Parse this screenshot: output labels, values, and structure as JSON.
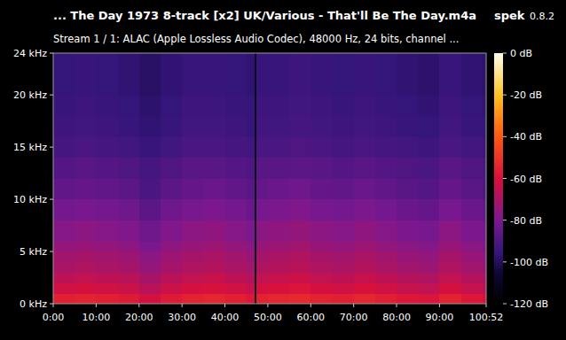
{
  "chart_data": {
    "type": "heatmap",
    "title": "... The Day 1973 8-track [x2] UK/Various - That'll Be The Day.m4a",
    "app": "spek",
    "version": "0.8.2",
    "subtitle": "Stream 1 / 1: ALAC (Apple Lossless Audio Codec), 48000 Hz, 24 bits, channel ...",
    "xlim": [
      0,
      6052
    ],
    "xticks": [
      {
        "value": 0,
        "label": "0:00"
      },
      {
        "value": 600,
        "label": "10:00"
      },
      {
        "value": 1200,
        "label": "20:00"
      },
      {
        "value": 1800,
        "label": "30:00"
      },
      {
        "value": 2400,
        "label": "40:00"
      },
      {
        "value": 3000,
        "label": "50:00"
      },
      {
        "value": 3600,
        "label": "60:00"
      },
      {
        "value": 4200,
        "label": "70:00"
      },
      {
        "value": 4800,
        "label": "80:00"
      },
      {
        "value": 5400,
        "label": "90:00"
      },
      {
        "value": 6052,
        "label": "100:52"
      }
    ],
    "ylim": [
      0,
      24
    ],
    "yticks": [
      {
        "value": 0,
        "label": "0 kHz"
      },
      {
        "value": 5,
        "label": "5 kHz"
      },
      {
        "value": 10,
        "label": "10 kHz"
      },
      {
        "value": 15,
        "label": "15 kHz"
      },
      {
        "value": 20,
        "label": "20 kHz"
      },
      {
        "value": 24,
        "label": "24 kHz"
      }
    ],
    "x_bins": [
      0,
      300,
      600,
      900,
      1200,
      1500,
      1800,
      2100,
      2400,
      2700,
      2820,
      2840,
      3000,
      3300,
      3600,
      3900,
      4200,
      4500,
      4800,
      5100,
      5400,
      5700,
      6000,
      6052
    ],
    "y_bins": [
      0,
      1,
      2,
      3,
      4,
      5,
      6,
      8,
      10,
      12,
      14,
      16,
      18,
      20,
      24
    ],
    "cells": [
      [
        -56,
        -55,
        -56,
        -57,
        -61,
        -57,
        -55,
        -54,
        -56,
        -58,
        -112,
        -55,
        -54,
        -53,
        -55,
        -56,
        -54,
        -56,
        -58,
        -59,
        -55,
        -58,
        -60
      ],
      [
        -62,
        -61,
        -62,
        -63,
        -67,
        -63,
        -61,
        -60,
        -62,
        -64,
        -112,
        -61,
        -60,
        -59,
        -61,
        -62,
        -60,
        -62,
        -64,
        -65,
        -61,
        -64,
        -66
      ],
      [
        -66,
        -65,
        -66,
        -67,
        -71,
        -67,
        -65,
        -64,
        -66,
        -68,
        -112,
        -65,
        -64,
        -63,
        -65,
        -66,
        -64,
        -66,
        -68,
        -69,
        -65,
        -68,
        -70
      ],
      [
        -70,
        -69,
        -70,
        -71,
        -75,
        -71,
        -69,
        -68,
        -70,
        -72,
        -112,
        -69,
        -68,
        -67,
        -69,
        -70,
        -68,
        -70,
        -72,
        -73,
        -69,
        -72,
        -74
      ],
      [
        -72,
        -71,
        -72,
        -73,
        -77,
        -73,
        -71,
        -70,
        -72,
        -74,
        -112,
        -71,
        -70,
        -69,
        -71,
        -72,
        -70,
        -72,
        -74,
        -75,
        -71,
        -74,
        -76
      ],
      [
        -75,
        -74,
        -75,
        -76,
        -80,
        -76,
        -74,
        -73,
        -75,
        -77,
        -112,
        -74,
        -73,
        -72,
        -74,
        -75,
        -73,
        -75,
        -77,
        -78,
        -74,
        -77,
        -79
      ],
      [
        -78,
        -77,
        -78,
        -79,
        -83,
        -79,
        -77,
        -76,
        -78,
        -80,
        -112,
        -77,
        -76,
        -75,
        -77,
        -78,
        -76,
        -78,
        -80,
        -81,
        -77,
        -80,
        -82
      ],
      [
        -82,
        -81,
        -82,
        -83,
        -87,
        -83,
        -81,
        -80,
        -82,
        -84,
        -112,
        -81,
        -80,
        -79,
        -81,
        -82,
        -80,
        -82,
        -84,
        -85,
        -81,
        -84,
        -86
      ],
      [
        -86,
        -85,
        -86,
        -87,
        -91,
        -87,
        -85,
        -84,
        -86,
        -88,
        -112,
        -85,
        -84,
        -83,
        -85,
        -86,
        -84,
        -86,
        -88,
        -89,
        -85,
        -88,
        -90
      ],
      [
        -89,
        -88,
        -89,
        -90,
        -92,
        -90,
        -88,
        -88,
        -89,
        -90,
        -112,
        -88,
        -88,
        -87,
        -88,
        -89,
        -88,
        -89,
        -90,
        -91,
        -88,
        -90,
        -91
      ],
      [
        -92,
        -91,
        -92,
        -93,
        -95,
        -93,
        -91,
        -91,
        -92,
        -93,
        -112,
        -91,
        -91,
        -90,
        -91,
        -92,
        -91,
        -92,
        -93,
        -94,
        -91,
        -93,
        -94
      ],
      [
        -94,
        -93,
        -94,
        -95,
        -97,
        -95,
        -93,
        -93,
        -94,
        -95,
        -112,
        -93,
        -93,
        -92,
        -93,
        -94,
        -93,
        -94,
        -95,
        -96,
        -93,
        -95,
        -96
      ],
      [
        -95,
        -94,
        -95,
        -96,
        -98,
        -96,
        -94,
        -94,
        -95,
        -96,
        -112,
        -94,
        -94,
        -93,
        -94,
        -95,
        -94,
        -95,
        -96,
        -97,
        -94,
        -96,
        -97
      ],
      [
        -96,
        -95,
        -96,
        -97,
        -99,
        -97,
        -95,
        -95,
        -96,
        -97,
        -112,
        -95,
        -95,
        -94,
        -95,
        -96,
        -95,
        -96,
        -97,
        -98,
        -95,
        -97,
        -98
      ]
    ],
    "zlim": [
      -120,
      0
    ],
    "zticks": [
      {
        "value": 0,
        "label": "0 dB"
      },
      {
        "value": -20,
        "label": "-20 dB"
      },
      {
        "value": -40,
        "label": "-40 dB"
      },
      {
        "value": -60,
        "label": "-60 dB"
      },
      {
        "value": -80,
        "label": "-80 dB"
      },
      {
        "value": -100,
        "label": "-100 dB"
      },
      {
        "value": -120,
        "label": "-120 dB"
      }
    ]
  }
}
